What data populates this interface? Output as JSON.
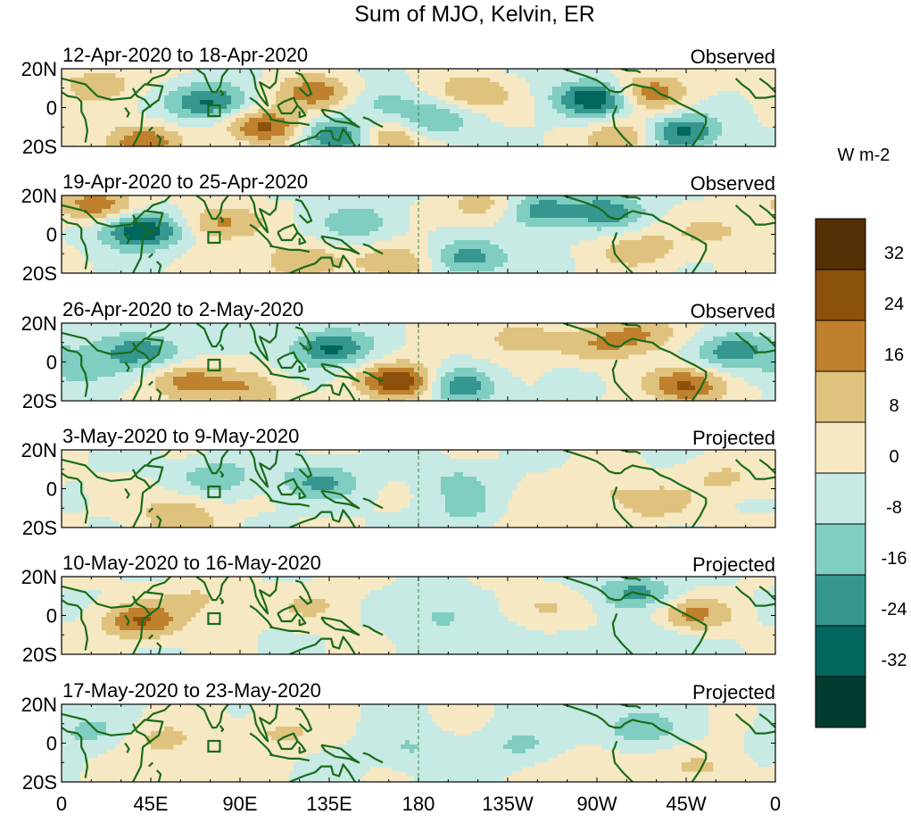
{
  "figure": {
    "title": "Sum of MJO, Kelvin, ER",
    "colorbar_label": "W m-2"
  },
  "chart_data": {
    "type": "heatmap",
    "title": "Sum of MJO, Kelvin, ER",
    "units": "W m-2",
    "x_ticks": [
      "0",
      "45E",
      "90E",
      "135E",
      "180",
      "135W",
      "90W",
      "45W",
      "0"
    ],
    "x_tick_values": [
      0,
      45,
      90,
      135,
      180,
      225,
      270,
      315,
      360
    ],
    "y_ticks": [
      "20N",
      "0",
      "20S"
    ],
    "y_tick_values": [
      20,
      0,
      -20
    ],
    "xlim": [
      0,
      360
    ],
    "ylim": [
      -20,
      20
    ],
    "dateline_dashed_at": 180,
    "colorbar": {
      "tick_labels": [
        "32",
        "24",
        "16",
        "8",
        "0",
        "-8",
        "-16",
        "-24",
        "-32"
      ],
      "tick_values": [
        32,
        24,
        16,
        8,
        0,
        -8,
        -16,
        -24,
        -32
      ],
      "colors": [
        "#543005",
        "#8c510a",
        "#bf812d",
        "#dfc27d",
        "#f6e8c3",
        "#c7eae5",
        "#80cdc1",
        "#35978f",
        "#01665e",
        "#003c30"
      ]
    },
    "panels": [
      {
        "date_range": "12-Apr-2020 to 18-Apr-2020",
        "status": "Observed",
        "anomalies": [
          {
            "lon": 75,
            "lat": 3,
            "value": -26
          },
          {
            "lon": 128,
            "lat": 7,
            "value": 23
          },
          {
            "lon": 103,
            "lat": -10,
            "value": 26
          },
          {
            "lon": 140,
            "lat": -15,
            "value": -30
          },
          {
            "lon": 162,
            "lat": -15,
            "value": 22
          },
          {
            "lon": 188,
            "lat": -7,
            "value": -16
          },
          {
            "lon": 207,
            "lat": 8,
            "value": 16
          },
          {
            "lon": 270,
            "lat": 5,
            "value": -34
          },
          {
            "lon": 295,
            "lat": 8,
            "value": 24
          },
          {
            "lon": 312,
            "lat": -13,
            "value": -28
          },
          {
            "lon": 285,
            "lat": -15,
            "value": 18
          },
          {
            "lon": 40,
            "lat": -18,
            "value": 22
          },
          {
            "lon": 18,
            "lat": 12,
            "value": 14
          },
          {
            "lon": 160,
            "lat": 2,
            "value": -12
          }
        ]
      },
      {
        "date_range": "19-Apr-2020 to 25-Apr-2020",
        "status": "Observed",
        "anomalies": [
          {
            "lon": 40,
            "lat": 2,
            "value": -34
          },
          {
            "lon": 18,
            "lat": 15,
            "value": 22
          },
          {
            "lon": 80,
            "lat": 6,
            "value": 18
          },
          {
            "lon": 150,
            "lat": 6,
            "value": -14
          },
          {
            "lon": 118,
            "lat": -14,
            "value": 16
          },
          {
            "lon": 170,
            "lat": -14,
            "value": 18
          },
          {
            "lon": 205,
            "lat": -12,
            "value": -22
          },
          {
            "lon": 240,
            "lat": 12,
            "value": -22
          },
          {
            "lon": 275,
            "lat": 12,
            "value": -20
          },
          {
            "lon": 292,
            "lat": -8,
            "value": 14
          },
          {
            "lon": 330,
            "lat": 2,
            "value": 10
          },
          {
            "lon": 214,
            "lat": 14,
            "value": 14
          }
        ]
      },
      {
        "date_range": "26-Apr-2020 to 2-May-2020",
        "status": "Observed",
        "anomalies": [
          {
            "lon": 40,
            "lat": 6,
            "value": -22
          },
          {
            "lon": 62,
            "lat": -10,
            "value": 20
          },
          {
            "lon": 135,
            "lat": 7,
            "value": -26
          },
          {
            "lon": 172,
            "lat": -10,
            "value": 34
          },
          {
            "lon": 200,
            "lat": -12,
            "value": -24
          },
          {
            "lon": 230,
            "lat": 12,
            "value": 14
          },
          {
            "lon": 270,
            "lat": 8,
            "value": 12
          },
          {
            "lon": 316,
            "lat": -12,
            "value": 26
          },
          {
            "lon": 338,
            "lat": 6,
            "value": -22
          },
          {
            "lon": 292,
            "lat": 14,
            "value": 18
          },
          {
            "lon": 12,
            "lat": -4,
            "value": -14
          },
          {
            "lon": 95,
            "lat": -14,
            "value": 14
          }
        ]
      },
      {
        "date_range": "3-May-2020 to 9-May-2020",
        "status": "Projected",
        "anomalies": [
          {
            "lon": 78,
            "lat": 6,
            "value": -14
          },
          {
            "lon": 130,
            "lat": 4,
            "value": -18
          },
          {
            "lon": 58,
            "lat": -10,
            "value": 10
          },
          {
            "lon": 60,
            "lat": -20,
            "value": 10
          },
          {
            "lon": 200,
            "lat": 4,
            "value": -9
          },
          {
            "lon": 272,
            "lat": 0,
            "value": 9
          },
          {
            "lon": 300,
            "lat": -8,
            "value": 12
          },
          {
            "lon": 335,
            "lat": 5,
            "value": 10
          },
          {
            "lon": 238,
            "lat": -16,
            "value": 9
          },
          {
            "lon": 205,
            "lat": -12,
            "value": -10
          }
        ]
      },
      {
        "date_range": "10-May-2020 to 16-May-2020",
        "status": "Projected",
        "anomalies": [
          {
            "lon": 40,
            "lat": -3,
            "value": 24
          },
          {
            "lon": 70,
            "lat": 8,
            "value": 10
          },
          {
            "lon": 128,
            "lat": 5,
            "value": 9
          },
          {
            "lon": 190,
            "lat": 0,
            "value": -10
          },
          {
            "lon": 240,
            "lat": 4,
            "value": 8
          },
          {
            "lon": 290,
            "lat": 12,
            "value": -18
          },
          {
            "lon": 318,
            "lat": 0,
            "value": 18
          },
          {
            "lon": 300,
            "lat": -12,
            "value": -10
          },
          {
            "lon": 215,
            "lat": -14,
            "value": -9
          }
        ]
      },
      {
        "date_range": "17-May-2020 to 23-May-2020",
        "status": "Projected",
        "anomalies": [
          {
            "lon": 12,
            "lat": 6,
            "value": -10
          },
          {
            "lon": 50,
            "lat": 2,
            "value": 10
          },
          {
            "lon": 110,
            "lat": 5,
            "value": 10
          },
          {
            "lon": 175,
            "lat": -3,
            "value": -9
          },
          {
            "lon": 232,
            "lat": -2,
            "value": -10
          },
          {
            "lon": 290,
            "lat": 8,
            "value": -14
          },
          {
            "lon": 325,
            "lat": -12,
            "value": 9
          },
          {
            "lon": 268,
            "lat": -12,
            "value": 9
          },
          {
            "lon": 60,
            "lat": -15,
            "value": 9
          }
        ]
      }
    ]
  }
}
